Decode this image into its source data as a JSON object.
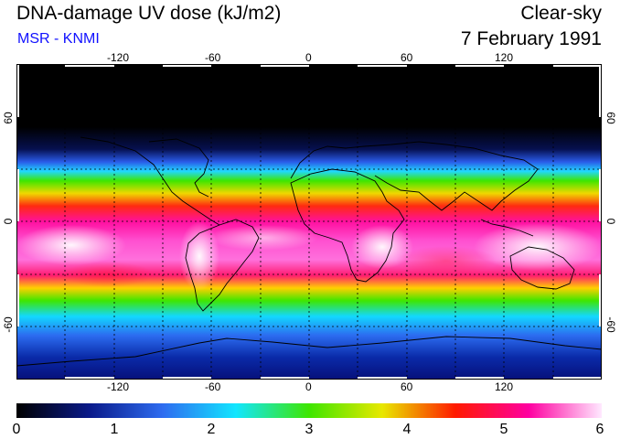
{
  "header": {
    "title": "DNA-damage UV dose (kJ/m2)",
    "source": "MSR - KNMI",
    "condition": "Clear-sky",
    "date": "7 February 1991"
  },
  "map": {
    "lon_ticks": [
      "-120",
      "-60",
      "0",
      "60",
      "120"
    ],
    "lat_ticks_left": [
      "60",
      "0",
      "-60"
    ],
    "lat_ticks_right": [
      "60",
      "0",
      "-60"
    ],
    "lon_tick_values": [
      -120,
      -60,
      0,
      60,
      120
    ],
    "lat_tick_values": [
      60,
      0,
      -60
    ],
    "lon_range": [
      -180,
      180
    ],
    "lat_range": [
      -90,
      90
    ],
    "grid": "dashed, 20° latitude / 30° longitude",
    "land_outline_color": "#000000"
  },
  "colorbar": {
    "labels": [
      "0",
      "1",
      "2",
      "3",
      "4",
      "5",
      "6"
    ],
    "min": 0,
    "max": 6,
    "colors": [
      "#000000",
      "#0a1a8a",
      "#2e6cf0",
      "#12e6ff",
      "#3ee600",
      "#e8e800",
      "#ff1a00",
      "#ff00a0",
      "#ffe8ff"
    ]
  }
}
